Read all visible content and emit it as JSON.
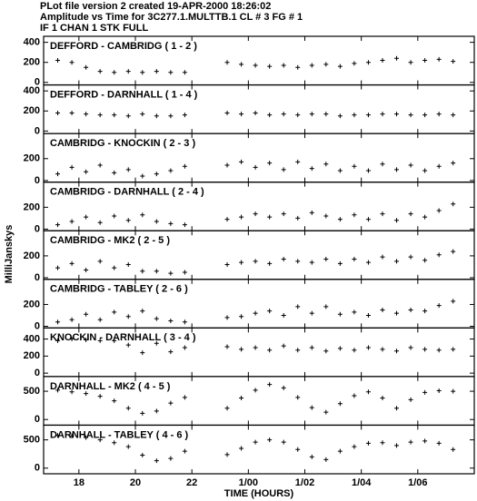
{
  "header": {
    "line1": "PLot file version 2  created 19-APR-2000 18:26:02",
    "line2": "Amplitude vs Time  for  3C277.1.MULTTB.1   CL # 3   FG # 1",
    "line3": "IF 1    CHAN 1    STK FULL"
  },
  "y_label": "MilliJanskys",
  "chart_data": [
    {
      "type": "scatter",
      "title": "DEFFORD - CAMBRIDG ( 1 - 2 )",
      "color": "#000000",
      "x": [
        17.25,
        17.75,
        18.25,
        18.75,
        19.25,
        19.75,
        20.25,
        20.75,
        21.25,
        21.75,
        23.25,
        23.75,
        24.25,
        24.75,
        25.25,
        25.75,
        26.25,
        26.75,
        27.25,
        27.75,
        28.25,
        28.75,
        29.25,
        29.75,
        30.25,
        30.75,
        31.25
      ],
      "values": [
        220,
        200,
        150,
        110,
        100,
        110,
        100,
        110,
        100,
        100,
        200,
        180,
        170,
        160,
        170,
        150,
        170,
        180,
        160,
        190,
        200,
        220,
        240,
        200,
        220,
        230,
        210
      ],
      "ylim": [
        -25,
        460
      ],
      "yticks": [
        0,
        200,
        400
      ]
    },
    {
      "type": "scatter",
      "title": "DEFFORD - DARNHALL ( 1 - 4 )",
      "color": "#000000",
      "x": [
        17.25,
        17.75,
        18.25,
        18.75,
        19.25,
        19.75,
        20.25,
        20.75,
        21.25,
        21.75,
        23.25,
        23.75,
        24.25,
        24.75,
        25.25,
        25.75,
        26.25,
        26.75,
        27.25,
        27.75,
        28.25,
        28.75,
        29.25,
        29.75,
        30.25,
        30.75,
        31.25
      ],
      "values": [
        180,
        180,
        170,
        160,
        160,
        150,
        170,
        150,
        150,
        160,
        180,
        170,
        180,
        160,
        170,
        160,
        170,
        170,
        150,
        160,
        160,
        170,
        170,
        160,
        160,
        170,
        160
      ],
      "ylim": [
        -25,
        460
      ],
      "yticks": [
        0,
        200,
        400
      ]
    },
    {
      "type": "scatter",
      "title": "CAMBRIDG - KNOCKIN ( 2 - 3 )",
      "color": "#000000",
      "x": [
        17.25,
        17.75,
        18.25,
        18.75,
        19.25,
        19.75,
        20.25,
        20.75,
        21.25,
        21.75,
        23.25,
        23.75,
        24.25,
        24.75,
        25.25,
        25.75,
        26.25,
        26.75,
        27.25,
        27.75,
        28.25,
        28.75,
        29.25,
        29.75,
        30.25,
        30.75,
        31.25
      ],
      "values": [
        60,
        120,
        80,
        140,
        70,
        100,
        40,
        60,
        90,
        130,
        140,
        170,
        120,
        160,
        100,
        170,
        110,
        150,
        90,
        130,
        90,
        150,
        100,
        140,
        90,
        130,
        160
      ],
      "ylim": [
        -15,
        430
      ],
      "yticks": [
        0,
        200
      ]
    },
    {
      "type": "scatter",
      "title": "CAMBRIDG - DARNHALL ( 2 - 4 )",
      "color": "#000000",
      "x": [
        17.25,
        17.75,
        18.25,
        18.75,
        19.25,
        19.75,
        20.25,
        20.75,
        21.25,
        21.75,
        23.25,
        23.75,
        24.25,
        24.75,
        25.25,
        25.75,
        26.25,
        26.75,
        27.25,
        27.75,
        28.25,
        28.75,
        29.25,
        29.75,
        30.25,
        30.75,
        31.25
      ],
      "values": [
        40,
        70,
        110,
        60,
        120,
        80,
        130,
        70,
        50,
        40,
        90,
        110,
        140,
        110,
        140,
        100,
        150,
        120,
        90,
        130,
        90,
        140,
        80,
        140,
        110,
        170,
        230
      ],
      "ylim": [
        -15,
        430
      ],
      "yticks": [
        0,
        200
      ]
    },
    {
      "type": "scatter",
      "title": "CAMBRIDG - MK2 ( 2 - 5 )",
      "color": "#000000",
      "x": [
        17.25,
        17.75,
        18.25,
        18.75,
        19.25,
        19.75,
        20.25,
        20.75,
        21.25,
        21.75,
        23.25,
        23.75,
        24.25,
        24.75,
        25.25,
        25.75,
        26.25,
        26.75,
        27.25,
        27.75,
        28.25,
        28.75,
        29.25,
        29.75,
        30.25,
        30.75,
        31.25
      ],
      "values": [
        90,
        130,
        70,
        150,
        90,
        120,
        60,
        60,
        40,
        50,
        120,
        140,
        150,
        130,
        170,
        150,
        140,
        170,
        130,
        170,
        140,
        190,
        150,
        190,
        160,
        210,
        240
      ],
      "ylim": [
        -15,
        430
      ],
      "yticks": [
        0,
        200
      ]
    },
    {
      "type": "scatter",
      "title": "CAMBRIDG - TABLEY ( 2 - 6 )",
      "color": "#000000",
      "x": [
        17.25,
        17.75,
        18.25,
        18.75,
        19.25,
        19.75,
        20.25,
        20.75,
        21.25,
        21.75,
        23.25,
        23.75,
        24.25,
        24.75,
        25.25,
        25.75,
        26.25,
        26.75,
        27.25,
        27.75,
        28.25,
        28.75,
        29.25,
        29.75,
        30.25,
        30.75,
        31.25
      ],
      "values": [
        40,
        60,
        110,
        60,
        130,
        90,
        140,
        70,
        50,
        40,
        80,
        90,
        120,
        140,
        100,
        180,
        120,
        180,
        110,
        130,
        100,
        150,
        120,
        150,
        140,
        190,
        230
      ],
      "ylim": [
        -15,
        430
      ],
      "yticks": [
        0,
        200
      ]
    },
    {
      "type": "scatter",
      "title": "KNOCKIN - DARNHALL ( 3 - 4 )",
      "color": "#000000",
      "x": [
        17.25,
        17.75,
        18.25,
        18.75,
        19.25,
        19.75,
        20.25,
        20.75,
        21.25,
        21.75,
        23.25,
        23.75,
        24.25,
        24.75,
        25.25,
        25.75,
        26.25,
        26.75,
        27.25,
        27.75,
        28.25,
        28.75,
        29.25,
        29.75,
        30.25,
        30.75,
        31.25
      ],
      "values": [
        380,
        400,
        390,
        380,
        380,
        330,
        240,
        350,
        250,
        300,
        310,
        280,
        300,
        270,
        320,
        270,
        300,
        260,
        290,
        270,
        300,
        280,
        260,
        300,
        280,
        270,
        280
      ],
      "ylim": [
        -40,
        530
      ],
      "yticks": [
        0,
        200,
        400
      ]
    },
    {
      "type": "scatter",
      "title": "DARNHALL - MK2 ( 4 - 5 )",
      "color": "#000000",
      "x": [
        17.25,
        17.75,
        18.25,
        18.75,
        19.25,
        19.75,
        20.25,
        20.75,
        21.25,
        21.75,
        23.25,
        23.75,
        24.25,
        24.75,
        25.25,
        25.75,
        26.25,
        26.75,
        27.25,
        27.75,
        28.25,
        28.75,
        29.25,
        29.75,
        30.25,
        30.75,
        31.25
      ],
      "values": [
        520,
        490,
        460,
        410,
        330,
        200,
        110,
        150,
        290,
        390,
        200,
        380,
        520,
        620,
        560,
        390,
        210,
        130,
        280,
        420,
        490,
        380,
        200,
        350,
        480,
        510,
        500
      ],
      "ylim": [
        -100,
        760
      ],
      "yticks": [
        0,
        500
      ]
    },
    {
      "type": "scatter",
      "title": "DARNHALL - TABLEY ( 4 - 6 )",
      "color": "#000000",
      "x": [
        17.25,
        17.75,
        18.25,
        18.75,
        19.25,
        19.75,
        20.25,
        20.75,
        21.25,
        21.75,
        23.25,
        23.75,
        24.25,
        24.75,
        25.25,
        25.75,
        26.25,
        26.75,
        27.25,
        27.75,
        28.25,
        28.75,
        29.25,
        29.75,
        30.25,
        30.75,
        31.25
      ],
      "values": [
        580,
        570,
        540,
        500,
        450,
        380,
        230,
        130,
        170,
        300,
        240,
        350,
        460,
        500,
        460,
        330,
        200,
        150,
        300,
        380,
        440,
        450,
        400,
        460,
        480,
        440,
        330
      ],
      "ylim": [
        -100,
        760
      ],
      "yticks": [
        0,
        500
      ],
      "xlabel": "TIME (HOURS)",
      "xlim": [
        16.75,
        32.0
      ],
      "xticks": [
        18,
        20,
        22,
        {
          "value": 24,
          "label": "1/00"
        },
        {
          "value": 26,
          "label": "1/02"
        },
        {
          "value": 28,
          "label": "1/04"
        },
        {
          "value": 30,
          "label": "1/06"
        }
      ]
    }
  ]
}
